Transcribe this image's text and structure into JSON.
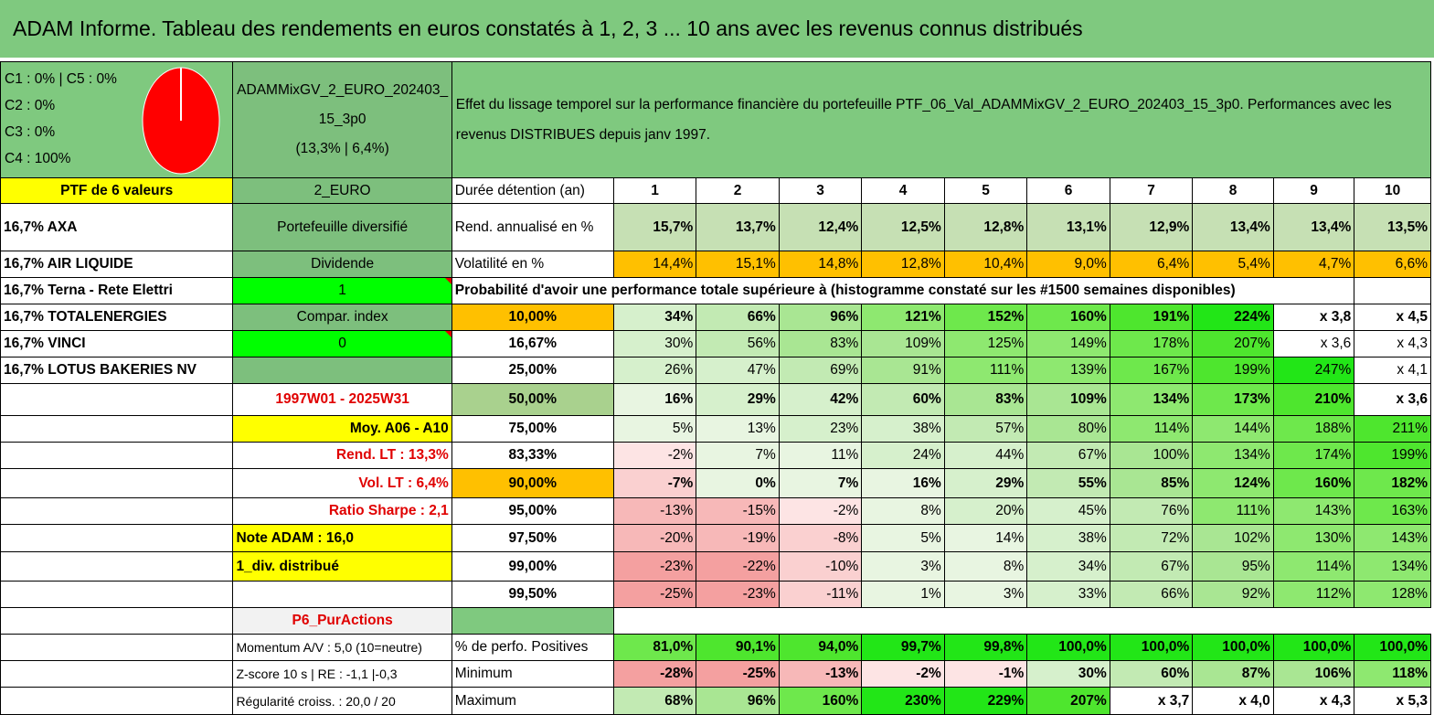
{
  "title": "ADAM Informe. Tableau des rendements en euros constatés à 1, 2, 3 ... 10 ans avec les revenus connus distribués",
  "legend": [
    "C1 : 0% | C5 : 0%",
    "C2 : 0%",
    "C3 : 0%",
    "C4 : 100%"
  ],
  "pie": {
    "C4": 100,
    "color": "#ff0000"
  },
  "portfolio": {
    "name": "ADAMMixGV_2_EURO_202403_15_3p0",
    "stats": "(13,3% | 6,4%)"
  },
  "effect_text": "Effet du lissage temporel sur la performance financière du portefeuille PTF_06_Val_ADAMMixGV_2_EURO_202403_15_3p0. Performances avec les revenus DISTRIBUES depuis janv 1997.",
  "ptf_label": "PTF de 6 valeurs",
  "currency": "2_EURO",
  "holdings": [
    "16,7% AXA",
    "16,7% AIR LIQUIDE",
    "16,7% Terna - Rete Elettri",
    "16,7% TOTALENERGIES",
    "16,7% VINCI",
    "16,7% LOTUS BAKERIES NV"
  ],
  "info": {
    "diversifie": "Portefeuille diversifié",
    "dividende": "Dividende",
    "one": "1",
    "compar": "Compar. index",
    "zero": "0",
    "period": "1997W01 - 2025W31",
    "moy": "Moy. A06 - A10",
    "rend_lt": "Rend. LT : 13,3%",
    "vol_lt": "Vol. LT : 6,4%",
    "sharpe": "Ratio Sharpe : 2,1",
    "note": "Note ADAM : 16,0",
    "div": "1_div. distribué",
    "p6": "P6_PurActions",
    "momentum": "Momentum A/V : 5,0 (10=neutre)",
    "zscore": "Z-score 10 s | RE : -1,1 |-0,3",
    "regularite": "Régularité croiss. : 20,0 / 20"
  },
  "header_label": "Durée détention (an)",
  "years": [
    "1",
    "2",
    "3",
    "4",
    "5",
    "6",
    "7",
    "8",
    "9",
    "10"
  ],
  "rend_label": "Rend. annualisé en %",
  "rend": [
    "15,7%",
    "13,7%",
    "12,4%",
    "12,5%",
    "12,8%",
    "13,1%",
    "12,9%",
    "13,4%",
    "13,4%",
    "13,5%"
  ],
  "vol_label": "Volatilité en %",
  "vol": [
    "14,4%",
    "15,1%",
    "14,8%",
    "12,8%",
    "10,4%",
    "9,0%",
    "6,4%",
    "5,4%",
    "4,7%",
    "6,6%"
  ],
  "prob_label": "Probabilité d'avoir une performance totale supérieure à (histogramme constaté sur les #1500 semaines disponibles)",
  "prob_rows": [
    {
      "p": "10,00%",
      "v": [
        "34%",
        "66%",
        "96%",
        "121%",
        "152%",
        "160%",
        "191%",
        "224%",
        "x 3,8",
        "x 4,5"
      ]
    },
    {
      "p": "16,67%",
      "v": [
        "30%",
        "56%",
        "83%",
        "109%",
        "125%",
        "149%",
        "178%",
        "207%",
        "x 3,6",
        "x 4,3"
      ]
    },
    {
      "p": "25,00%",
      "v": [
        "26%",
        "47%",
        "69%",
        "91%",
        "111%",
        "139%",
        "167%",
        "199%",
        "247%",
        "x 4,1"
      ]
    },
    {
      "p": "50,00%",
      "v": [
        "16%",
        "29%",
        "42%",
        "60%",
        "83%",
        "109%",
        "134%",
        "173%",
        "210%",
        "x 3,6"
      ]
    },
    {
      "p": "75,00%",
      "v": [
        "5%",
        "13%",
        "23%",
        "38%",
        "57%",
        "80%",
        "114%",
        "144%",
        "188%",
        "211%"
      ]
    },
    {
      "p": "83,33%",
      "v": [
        "-2%",
        "7%",
        "11%",
        "24%",
        "44%",
        "67%",
        "100%",
        "134%",
        "174%",
        "199%"
      ]
    },
    {
      "p": "90,00%",
      "v": [
        "-7%",
        "0%",
        "7%",
        "16%",
        "29%",
        "55%",
        "85%",
        "124%",
        "160%",
        "182%"
      ]
    },
    {
      "p": "95,00%",
      "v": [
        "-13%",
        "-15%",
        "-2%",
        "8%",
        "20%",
        "45%",
        "76%",
        "111%",
        "143%",
        "163%"
      ]
    },
    {
      "p": "97,50%",
      "v": [
        "-20%",
        "-19%",
        "-8%",
        "5%",
        "14%",
        "38%",
        "72%",
        "102%",
        "130%",
        "143%"
      ]
    },
    {
      "p": "99,00%",
      "v": [
        "-23%",
        "-22%",
        "-10%",
        "3%",
        "8%",
        "34%",
        "67%",
        "95%",
        "114%",
        "134%"
      ]
    },
    {
      "p": "99,50%",
      "v": [
        "-25%",
        "-23%",
        "-11%",
        "1%",
        "3%",
        "33%",
        "66%",
        "92%",
        "112%",
        "128%"
      ]
    }
  ],
  "pos_label": "% de perfo. Positives",
  "pos": [
    "81,0%",
    "90,1%",
    "94,0%",
    "99,7%",
    "99,8%",
    "100,0%",
    "100,0%",
    "100,0%",
    "100,0%",
    "100,0%"
  ],
  "min_label": "Minimum",
  "min": [
    "-28%",
    "-25%",
    "-13%",
    "-2%",
    "-1%",
    "30%",
    "60%",
    "87%",
    "106%",
    "118%"
  ],
  "max_label": "Maximum",
  "max": [
    "68%",
    "96%",
    "160%",
    "230%",
    "229%",
    "207%",
    "x 3,7",
    "x 4,0",
    "x 4,3",
    "x 5,3"
  ]
}
